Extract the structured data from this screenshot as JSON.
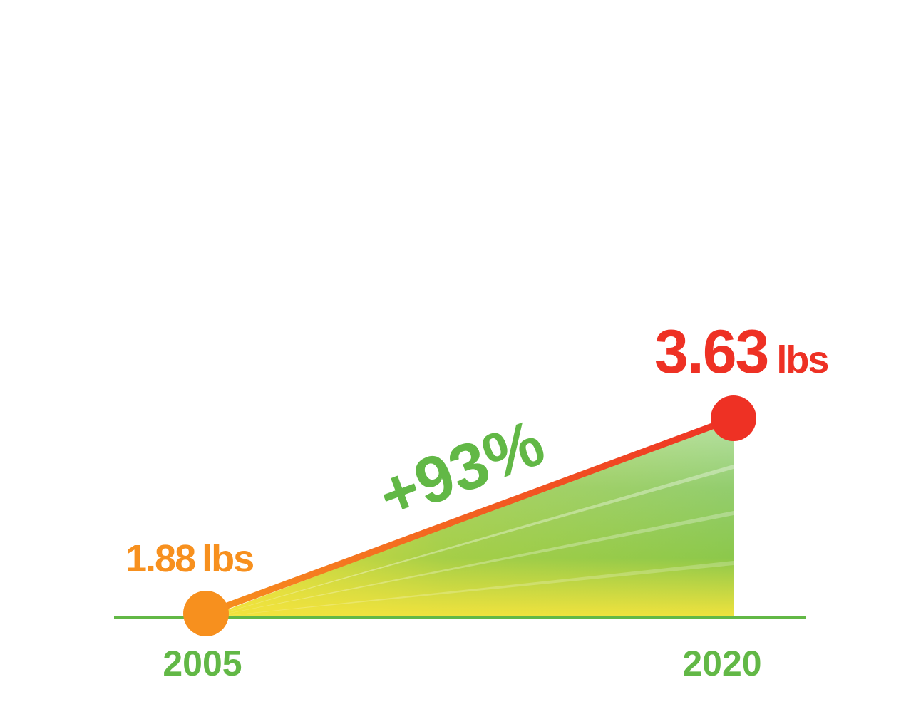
{
  "chart_data": {
    "type": "line",
    "x": [
      "2005",
      "2020"
    ],
    "values": [
      1.88,
      3.63
    ],
    "unit": "lbs",
    "value_labels": [
      {
        "number": "1.88",
        "unit": "lbs"
      },
      {
        "number": "3.63",
        "unit": "lbs"
      }
    ],
    "change_label": "+93%",
    "grid": false,
    "legend": "none"
  },
  "colors": {
    "start_point": "#F7901E",
    "end_point": "#EE3124",
    "axis": "#62B846",
    "change_label": "#62B846",
    "year_labels": "#62B846",
    "fill_top": "#B9E2A6",
    "fill_mid": "#8CC84B",
    "fill_bottom": "#F2E33D"
  }
}
